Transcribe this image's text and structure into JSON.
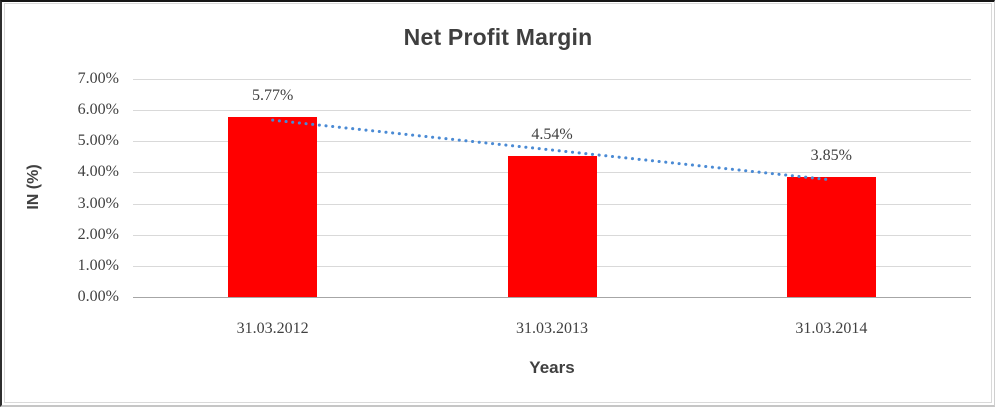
{
  "chart_data": {
    "type": "bar",
    "title": "Net Profit Margin",
    "xlabel": "Years",
    "ylabel": "IN (%)",
    "categories": [
      "31.03.2012",
      "31.03.2013",
      "31.03.2014"
    ],
    "values": [
      5.77,
      4.54,
      3.85
    ],
    "data_labels": [
      "5.77%",
      "4.54%",
      "3.85%"
    ],
    "y_ticks": [
      "0.00%",
      "1.00%",
      "2.00%",
      "3.00%",
      "4.00%",
      "5.00%",
      "6.00%",
      "7.00%"
    ],
    "ylim": [
      0,
      7
    ],
    "grid": true,
    "legend": "none",
    "bar_color": "#FF0000",
    "gridline_color": "#D9D9D9",
    "axis_line_color": "#A6A6A6",
    "text_color": "#404040",
    "title_color": "#3F3F3F",
    "trendline": {
      "type": "linear",
      "style": "dotted",
      "color": "#4A8AD4"
    }
  }
}
